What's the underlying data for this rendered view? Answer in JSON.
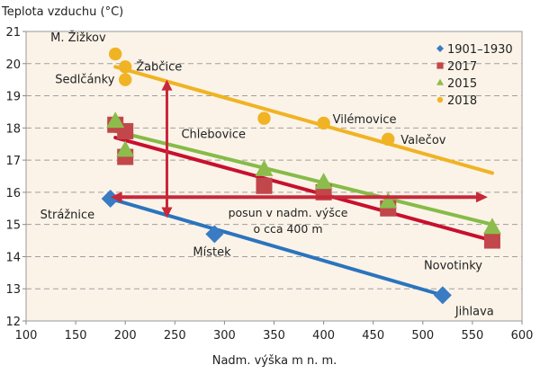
{
  "chart_data": {
    "type": "scatter",
    "ylabel": "Teplota vzduchu (°C)",
    "xlabel": "Nadm. výška m n. m.",
    "xlim": [
      100,
      600
    ],
    "ylim": [
      12,
      21
    ],
    "xticks": [
      100,
      150,
      200,
      250,
      300,
      350,
      400,
      450,
      500,
      550,
      600
    ],
    "yticks": [
      12,
      13,
      14,
      15,
      16,
      17,
      18,
      19,
      20,
      21
    ],
    "grid": "horizontal dashed",
    "legend_position": "top-right",
    "background": "#fbf3e8",
    "series": [
      {
        "name": "1901–1930",
        "marker": "diamond",
        "color": "#3a7cc4",
        "line_color": "#2b74bd",
        "points": [
          [
            185,
            15.8
          ],
          [
            290,
            14.7
          ],
          [
            520,
            12.8
          ]
        ],
        "trend": [
          [
            185,
            15.8
          ],
          [
            520,
            12.8
          ]
        ]
      },
      {
        "name": "2017",
        "marker": "square",
        "color": "#c1474b",
        "line_color": "#c8102e",
        "points": [
          [
            190,
            18.1
          ],
          [
            200,
            17.9
          ],
          [
            200,
            17.1
          ],
          [
            340,
            16.2
          ],
          [
            400,
            16.0
          ],
          [
            465,
            15.5
          ],
          [
            570,
            14.5
          ]
        ],
        "trend": [
          [
            190,
            17.7
          ],
          [
            570,
            14.5
          ]
        ]
      },
      {
        "name": "2015",
        "marker": "triangle",
        "color": "#8cbd4c",
        "line_color": "#86bb48",
        "points": [
          [
            190,
            18.2
          ],
          [
            200,
            17.3
          ],
          [
            340,
            16.7
          ],
          [
            400,
            16.3
          ],
          [
            465,
            15.7
          ],
          [
            570,
            14.9
          ]
        ],
        "trend": [
          [
            190,
            17.9
          ],
          [
            570,
            15.0
          ]
        ]
      },
      {
        "name": "2018",
        "marker": "circle",
        "color": "#f0b323",
        "line_color": "#f0b323",
        "points": [
          [
            190,
            20.3
          ],
          [
            200,
            19.9
          ],
          [
            200,
            19.5
          ],
          [
            340,
            18.3
          ],
          [
            400,
            18.15
          ],
          [
            465,
            17.65
          ]
        ],
        "trend": [
          [
            190,
            19.9
          ],
          [
            570,
            16.6
          ]
        ]
      }
    ],
    "point_labels": [
      {
        "text": "M. Žižkov",
        "x": 190,
        "y": 20.3
      },
      {
        "text": "Žabčice",
        "x": 200,
        "y": 19.9
      },
      {
        "text": "Sedlčánky",
        "x": 200,
        "y": 19.5
      },
      {
        "text": "Chlebovice",
        "x": 340,
        "y": 18.3
      },
      {
        "text": "Vilémovice",
        "x": 400,
        "y": 18.15
      },
      {
        "text": "Valečov",
        "x": 465,
        "y": 17.65
      },
      {
        "text": "Strážnice",
        "x": 185,
        "y": 15.8
      },
      {
        "text": "Místek",
        "x": 290,
        "y": 14.7
      },
      {
        "text": "Novotinky",
        "x": 570,
        "y": 14.5
      },
      {
        "text": "Jihlava",
        "x": 520,
        "y": 12.8
      }
    ],
    "annotations": {
      "shift_text_line1": "posun v nadm. výšce",
      "shift_text_line2": "o cca 400 m",
      "arrow_color": "#c8283a",
      "vertical_arrow": {
        "x": 242,
        "from": 15.2,
        "to": 19.5
      },
      "horizontal_arrow": {
        "y": 15.85,
        "from": 185,
        "to": 580
      }
    }
  }
}
